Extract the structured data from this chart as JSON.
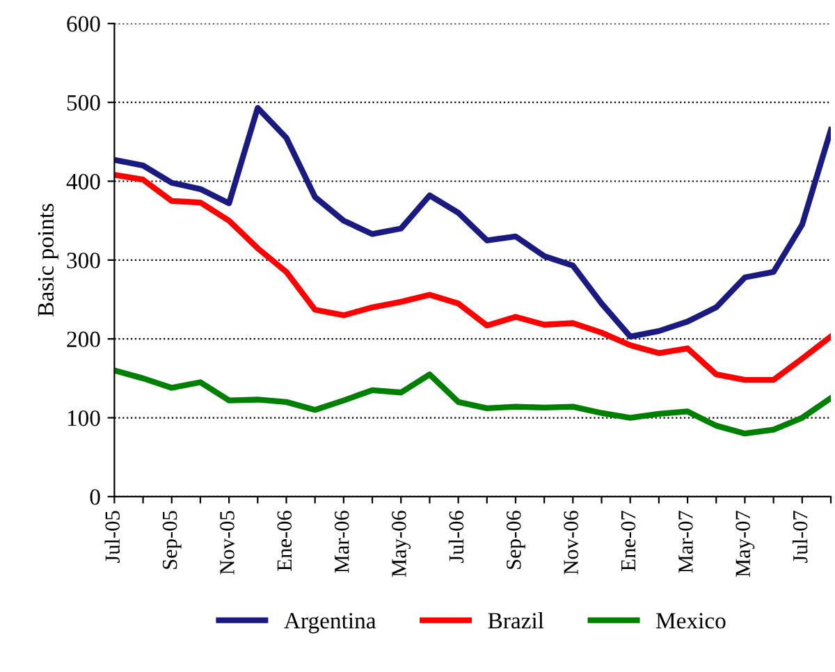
{
  "chart_data": {
    "type": "line",
    "ylabel": "Basic points",
    "categories": [
      "Jul-05",
      null,
      "Sep-05",
      null,
      "Nov-05",
      null,
      "Ene-06",
      null,
      "Mar-06",
      null,
      "May-06",
      null,
      "Jul-06",
      null,
      "Sep-06",
      null,
      "Nov-06",
      null,
      "Ene-07",
      null,
      "Mar-07",
      null,
      "May-07",
      null,
      "Jul-07",
      null
    ],
    "series": [
      {
        "name": "Argentina",
        "color": "#1a1a80",
        "values": [
          427,
          420,
          398,
          390,
          372,
          493,
          455,
          380,
          350,
          333,
          340,
          382,
          360,
          325,
          330,
          305,
          293,
          245,
          203,
          210,
          222,
          240,
          278,
          285,
          345,
          465
        ]
      },
      {
        "name": "Brazil",
        "color": "#ff0000",
        "values": [
          408,
          402,
          375,
          373,
          350,
          315,
          285,
          237,
          230,
          240,
          247,
          256,
          245,
          217,
          228,
          218,
          220,
          208,
          192,
          182,
          188,
          155,
          148,
          148,
          175,
          203
        ]
      },
      {
        "name": "Mexico",
        "color": "#008000",
        "values": [
          160,
          150,
          138,
          145,
          122,
          123,
          120,
          110,
          122,
          135,
          132,
          155,
          120,
          112,
          114,
          113,
          114,
          106,
          100,
          105,
          108,
          90,
          80,
          85,
          100,
          125
        ]
      }
    ],
    "ylim": [
      0,
      600
    ],
    "yticks": [
      0,
      100,
      200,
      300,
      400,
      500,
      600
    ],
    "grid": "y",
    "legend": "bottom",
    "marker": "none",
    "line_style": "solid"
  }
}
